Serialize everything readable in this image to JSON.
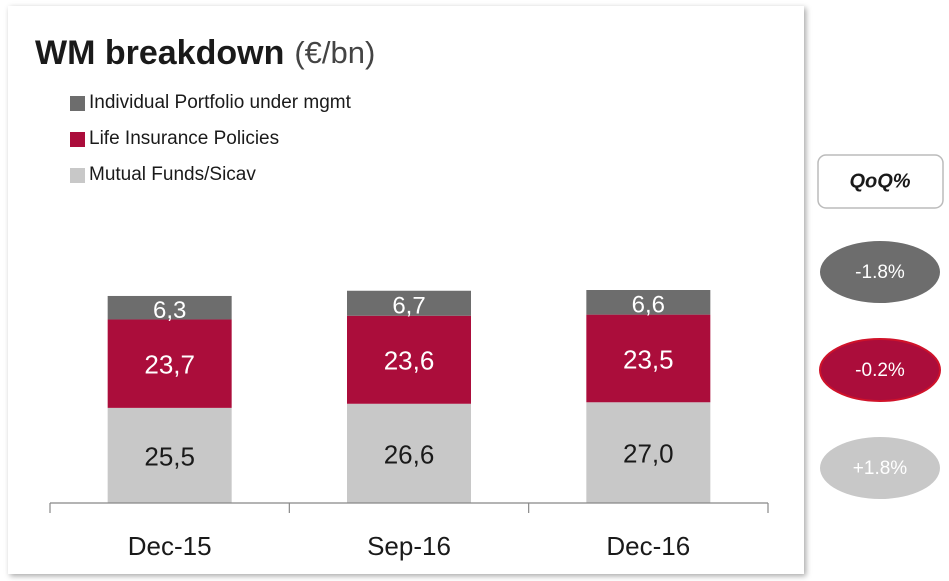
{
  "chart_data": {
    "type": "stacked_bar",
    "title": "WM breakdown",
    "subtitle": "(€/bn)",
    "categories": [
      "Dec-15",
      "Sep-16",
      "Dec-16"
    ],
    "series": [
      {
        "name": "Mutual Funds/Sicav",
        "color": "#c8c8c8",
        "label_color": "#1a1a1a",
        "values": [
          25.5,
          26.6,
          27.0
        ],
        "value_labels": [
          "25,5",
          "26,6",
          "27,0"
        ],
        "qoq": "+1.8%"
      },
      {
        "name": "Life Insurance Policies",
        "color": "#ab0d3b",
        "label_color": "#ffffff",
        "values": [
          23.7,
          23.6,
          23.5
        ],
        "value_labels": [
          "23,7",
          "23,6",
          "23,5"
        ],
        "qoq": "-0.2%"
      },
      {
        "name": "Individual Portfolio under mgmt",
        "color": "#6d6d6d",
        "label_color": "#ffffff",
        "values": [
          6.3,
          6.7,
          6.6
        ],
        "value_labels": [
          "6,3",
          "6,7",
          "6,6"
        ],
        "qoq": "-1.8%"
      }
    ],
    "qoq_title": "QoQ%"
  }
}
